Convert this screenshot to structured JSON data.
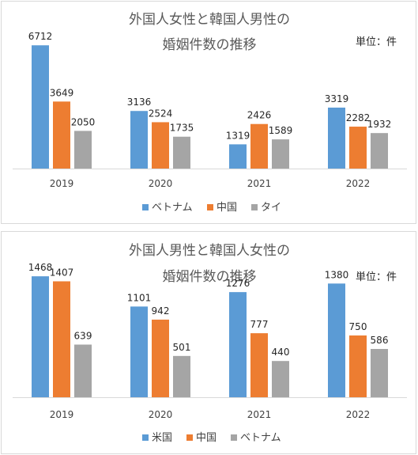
{
  "unit_label": "単位：件",
  "colors": {
    "blue": "#5b9bd5",
    "orange": "#ed7d31",
    "gray": "#a5a5a5"
  },
  "chart_data": [
    {
      "type": "bar",
      "title_lines": [
        "外国人女性と韓国人男性の",
        "婚姻件数の推移"
      ],
      "categories": [
        "2019",
        "2020",
        "2021",
        "2022"
      ],
      "series": [
        {
          "name": "ベトナム",
          "color": "#5b9bd5",
          "values": [
            6712,
            3136,
            1319,
            3319
          ]
        },
        {
          "name": "中国",
          "color": "#ed7d31",
          "values": [
            3649,
            2524,
            2426,
            2282
          ]
        },
        {
          "name": "タイ",
          "color": "#a5a5a5",
          "values": [
            2050,
            1735,
            1589,
            1932
          ]
        }
      ],
      "ylim": [
        0,
        7800
      ],
      "legend": "bottom",
      "grid": false
    },
    {
      "type": "bar",
      "title_lines": [
        "外国人男性と韓国人女性の",
        "婚姻件数の推移"
      ],
      "categories": [
        "2019",
        "2020",
        "2021",
        "2022"
      ],
      "series": [
        {
          "name": "米国",
          "color": "#5b9bd5",
          "values": [
            1468,
            1101,
            1276,
            1380
          ]
        },
        {
          "name": "中国",
          "color": "#ed7d31",
          "values": [
            1407,
            942,
            777,
            750
          ]
        },
        {
          "name": "ベトナム",
          "color": "#a5a5a5",
          "values": [
            639,
            501,
            440,
            586
          ]
        }
      ],
      "ylim": [
        0,
        1700
      ],
      "legend": "bottom",
      "grid": false
    }
  ]
}
